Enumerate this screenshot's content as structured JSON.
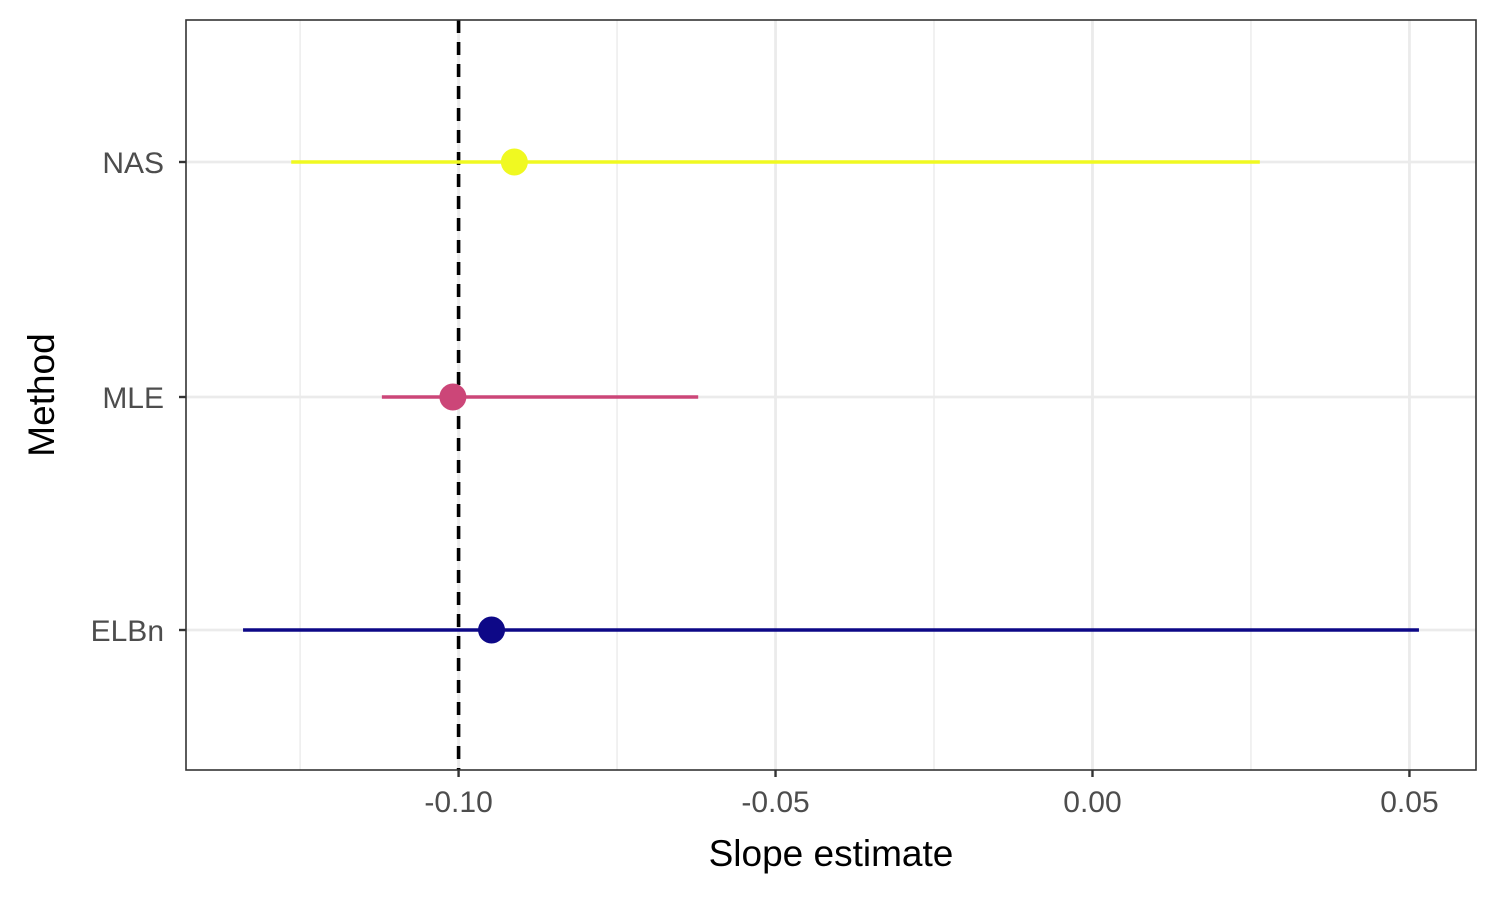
{
  "chart_data": {
    "type": "scatter",
    "subtype": "point-range",
    "title": "",
    "xlabel": "Slope estimate",
    "ylabel": "Method",
    "xlim": [
      -0.143,
      0.0605
    ],
    "x_ticks": [
      -0.1,
      -0.05,
      0.0,
      0.05
    ],
    "x_tick_labels": [
      "-0.10",
      "-0.05",
      "0.00",
      "0.05"
    ],
    "categories": [
      "ELBn",
      "MLE",
      "NAS"
    ],
    "series": [
      {
        "category": "ELBn",
        "estimate": -0.0948,
        "lower": -0.134,
        "upper": 0.0515,
        "color": "#0D0887"
      },
      {
        "category": "MLE",
        "estimate": -0.1009,
        "lower": -0.1121,
        "upper": -0.0622,
        "color": "#CC4678"
      },
      {
        "category": "NAS",
        "estimate": -0.0912,
        "lower": -0.1264,
        "upper": 0.0264,
        "color": "#F0F921"
      }
    ],
    "reference_line": {
      "x": -0.1,
      "style": "dashed",
      "color": "#000000"
    },
    "grid": true,
    "legend": "none",
    "theme": "bw"
  }
}
